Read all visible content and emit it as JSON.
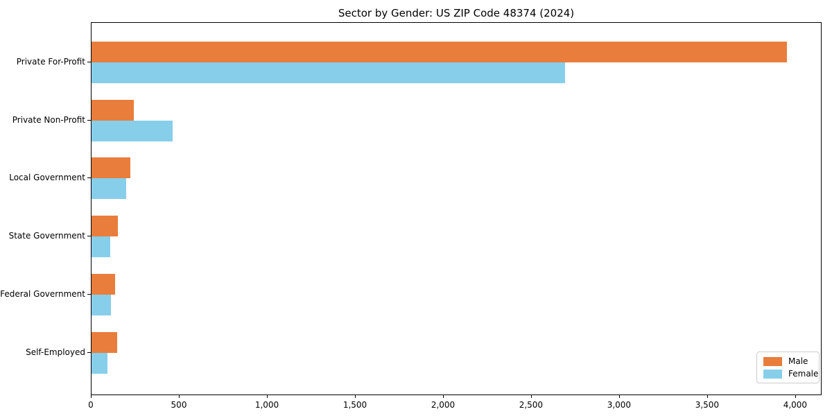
{
  "title": "Sector by Gender: US ZIP Code 48374 (2024)",
  "chart_data": {
    "type": "bar",
    "orientation": "horizontal",
    "title": "Sector by Gender: US ZIP Code 48374 (2024)",
    "categories": [
      "Private For-Profit",
      "Private Non-Profit",
      "Local Government",
      "State Government",
      "Federal Government",
      "Self-Employed"
    ],
    "series": [
      {
        "name": "Male",
        "color": "#e87d3c",
        "values": [
          3950,
          240,
          220,
          150,
          135,
          145
        ]
      },
      {
        "name": "Female",
        "color": "#87ceeb",
        "values": [
          2690,
          460,
          195,
          105,
          110,
          90
        ]
      }
    ],
    "xlim": [
      0,
      4150
    ],
    "xticks": [
      0,
      500,
      1000,
      1500,
      2000,
      2500,
      3000,
      3500,
      4000
    ],
    "xtick_labels": [
      "0",
      "500",
      "1,000",
      "1,500",
      "2,000",
      "2,500",
      "3,000",
      "3,500",
      "4,000"
    ],
    "legend_position": "lower right",
    "grid": false,
    "bar_group_order": "Male on top, Female below, adjacent bars"
  },
  "legend": {
    "items": [
      {
        "label": "Male",
        "color": "#e87d3c"
      },
      {
        "label": "Female",
        "color": "#87ceeb"
      }
    ]
  }
}
